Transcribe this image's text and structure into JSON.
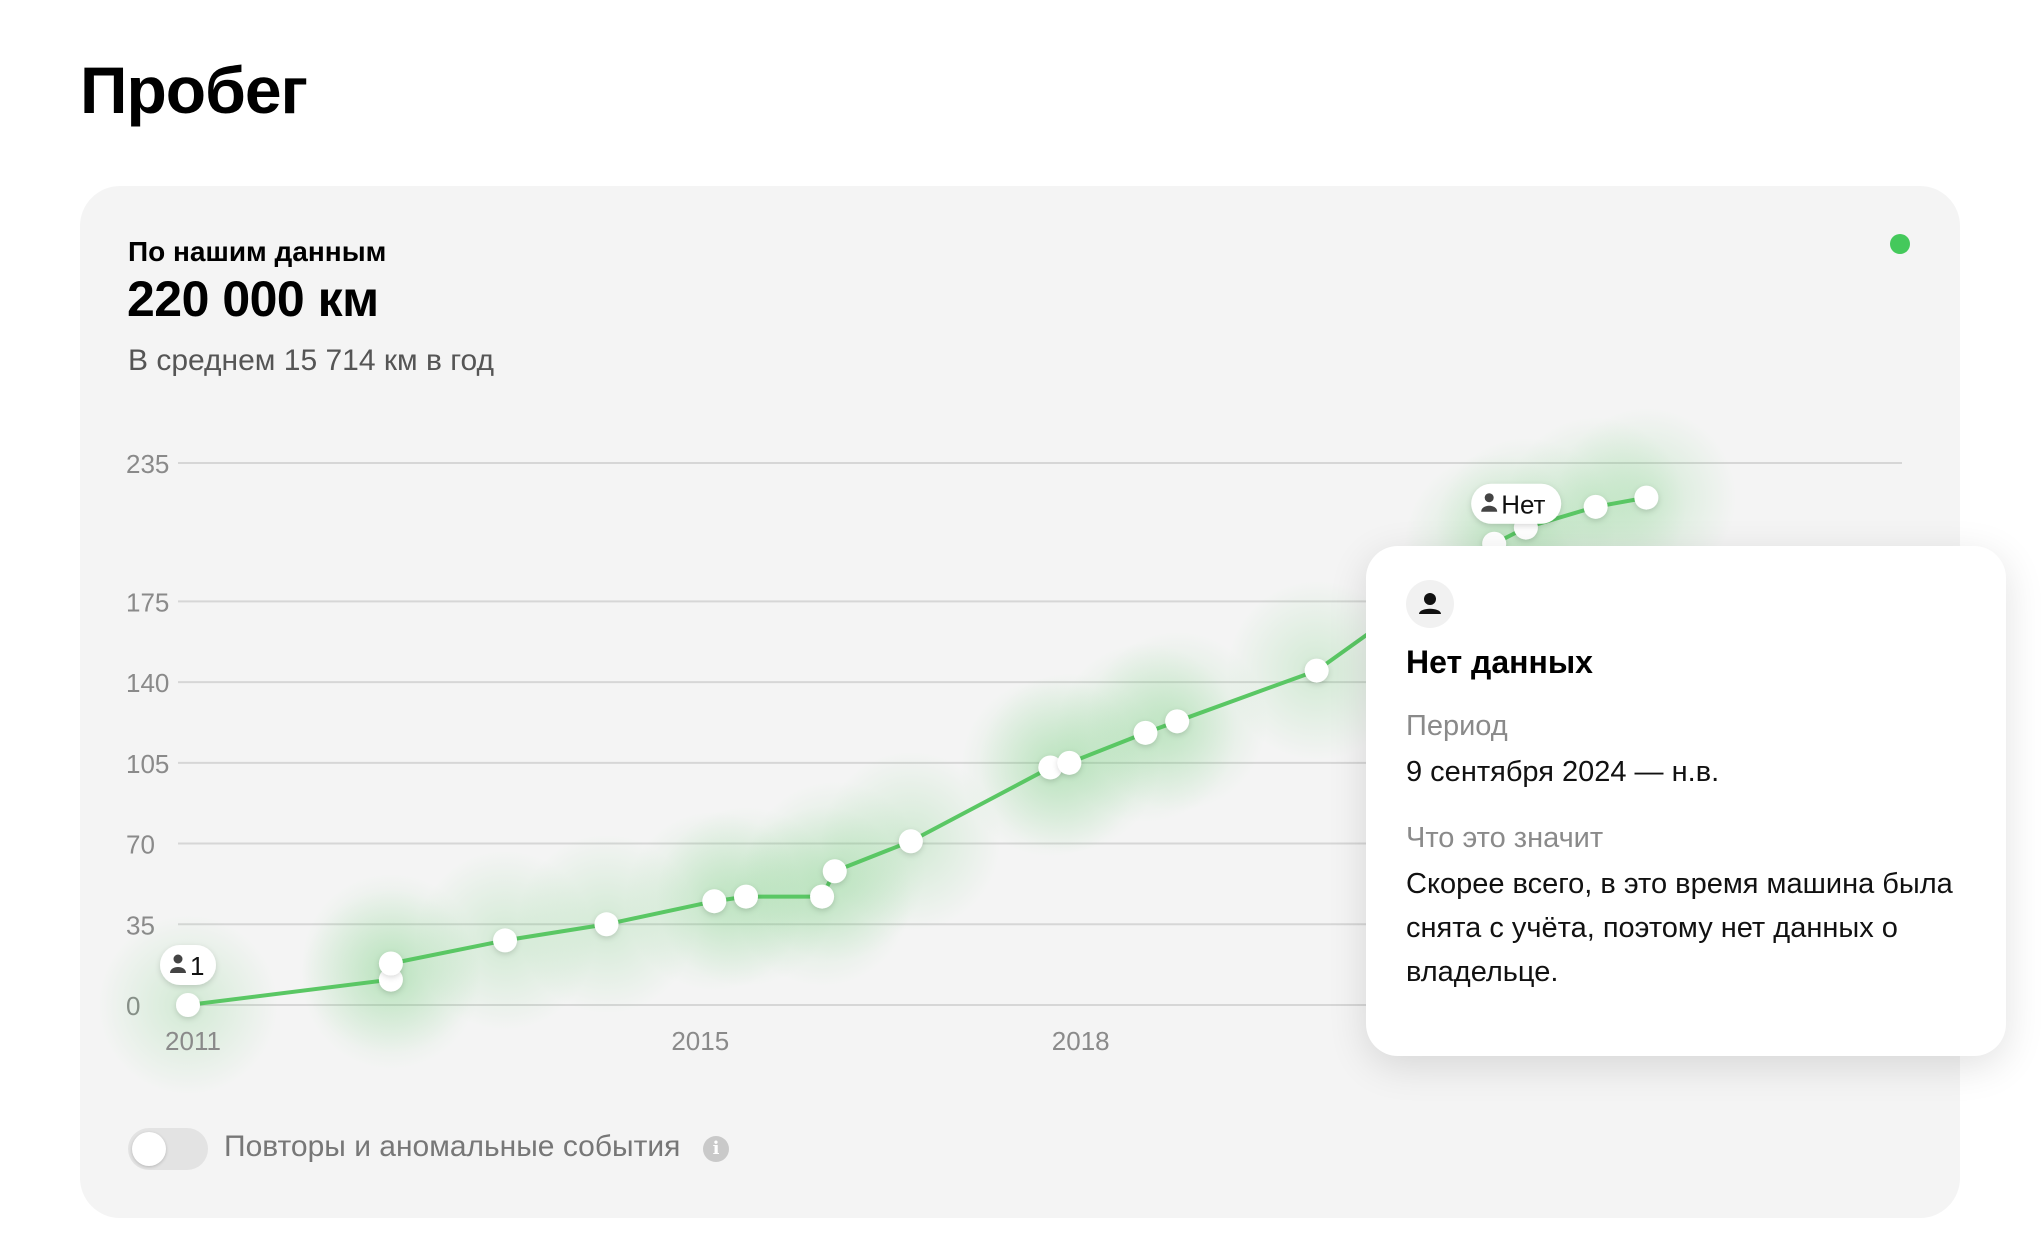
{
  "page": {
    "title": "Пробег"
  },
  "summary": {
    "subtitle": "По нашим данным",
    "total": "220 000 км",
    "average": "В среднем 15 714 км в год"
  },
  "status_color": "#44c95b",
  "chart_data": {
    "type": "line",
    "x_unit": "year",
    "xlim": [
      2011,
      2024.5
    ],
    "ylim": [
      0,
      235
    ],
    "y_ticks": [
      0,
      35,
      70,
      105,
      140,
      175,
      235
    ],
    "x_tick_labels": [
      {
        "label": "2011",
        "x": 2011
      },
      {
        "label": "2015",
        "x": 2015
      },
      {
        "label": "2018",
        "x": 2018
      }
    ],
    "series": [
      {
        "color": "#5ac764",
        "points": [
          [
            2011.0,
            0
          ],
          [
            2012.6,
            11
          ],
          [
            2012.6,
            18
          ],
          [
            2013.5,
            28
          ],
          [
            2014.3,
            35
          ],
          [
            2015.15,
            45
          ],
          [
            2015.4,
            47
          ],
          [
            2016.0,
            47
          ],
          [
            2016.1,
            58
          ],
          [
            2016.7,
            71
          ],
          [
            2017.8,
            103
          ],
          [
            2017.95,
            105
          ],
          [
            2018.55,
            118
          ],
          [
            2018.8,
            123
          ],
          [
            2019.9,
            145
          ],
          [
            2021.3,
            200
          ],
          [
            2021.55,
            207
          ],
          [
            2022.1,
            216
          ],
          [
            2022.5,
            220
          ]
        ]
      }
    ],
    "markers": [
      {
        "label": "1",
        "icon": "person-icon",
        "x": 2011.0,
        "y": 0
      },
      {
        "label": "Нет",
        "icon": "person-icon",
        "x": 2021.3,
        "y": 200
      }
    ]
  },
  "tooltip": {
    "icon": "person-icon",
    "title": "Нет данных",
    "period_label": "Период",
    "period_value": "9 сентября 2024 — н.в.",
    "meaning_label": "Что это значит",
    "meaning_value": "Скорее всего, в это время машина была снята с учёта, поэтому нет данных о владельце."
  },
  "toggle": {
    "label": "Повторы и аномальные события",
    "on": false,
    "info_icon": "info-icon",
    "info_glyph": "i"
  }
}
